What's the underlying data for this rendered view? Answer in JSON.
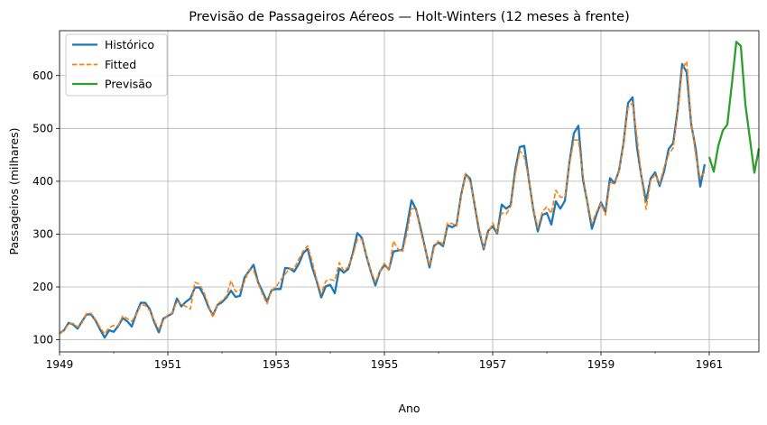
{
  "chart_data": {
    "type": "line",
    "title": "Previsão de Passageiros Aéreos — Holt-Winters (12 meses à frente)",
    "xlabel": "Ano",
    "ylabel": "Passageiros (milhares)",
    "x_start": "1949-01",
    "x_end": "1961-12",
    "xlim": [
      "1949-01",
      "1961-12"
    ],
    "ylim": [
      77,
      685
    ],
    "x_ticks": [
      "1949",
      "1951",
      "1953",
      "1955",
      "1957",
      "1959",
      "1961"
    ],
    "y_ticks": [
      100,
      200,
      300,
      400,
      500,
      600
    ],
    "grid": true,
    "legend_position": "top-left",
    "series": [
      {
        "name": "Histórico",
        "color": "#1f77b4",
        "style": "solid",
        "start": "1949-01",
        "values": [
          112,
          118,
          132,
          129,
          121,
          135,
          148,
          148,
          136,
          119,
          104,
          118,
          115,
          126,
          141,
          135,
          125,
          149,
          170,
          170,
          158,
          133,
          114,
          140,
          145,
          150,
          178,
          163,
          172,
          178,
          199,
          199,
          184,
          162,
          146,
          166,
          171,
          180,
          193,
          181,
          183,
          218,
          230,
          242,
          209,
          191,
          172,
          194,
          196,
          196,
          236,
          235,
          229,
          243,
          264,
          272,
          237,
          211,
          180,
          201,
          204,
          188,
          235,
          227,
          234,
          264,
          302,
          293,
          259,
          229,
          203,
          229,
          242,
          233,
          267,
          269,
          270,
          315,
          364,
          347,
          312,
          274,
          237,
          278,
          284,
          277,
          317,
          313,
          318,
          374,
          413,
          405,
          355,
          306,
          271,
          306,
          315,
          301,
          356,
          348,
          355,
          422,
          465,
          467,
          404,
          347,
          305,
          336,
          340,
          318,
          362,
          348,
          363,
          435,
          491,
          505,
          404,
          359,
          310,
          337,
          360,
          342,
          406,
          396,
          420,
          472,
          548,
          559,
          463,
          407,
          362,
          405,
          417,
          391,
          419,
          461,
          472,
          535,
          622,
          606,
          508,
          461,
          390,
          432
        ]
      },
      {
        "name": "Fitted",
        "color": "#ff7f0e",
        "style": "dashed",
        "start": "1949-01",
        "values": [
          112,
          117,
          130,
          131,
          124,
          132,
          150,
          150,
          138,
          123,
          111,
          123,
          127,
          127,
          145,
          140,
          135,
          147,
          166,
          165,
          155,
          136,
          120,
          136,
          147,
          151,
          172,
          168,
          163,
          158,
          209,
          205,
          190,
          166,
          142,
          168,
          174,
          183,
          212,
          191,
          193,
          210,
          233,
          232,
          207,
          186,
          168,
          194,
          200,
          213,
          224,
          235,
          234,
          252,
          268,
          278,
          248,
          214,
          187,
          211,
          214,
          212,
          246,
          230,
          238,
          260,
          290,
          290,
          261,
          230,
          209,
          229,
          245,
          231,
          287,
          272,
          266,
          302,
          348,
          348,
          306,
          272,
          241,
          274,
          288,
          280,
          321,
          320,
          315,
          370,
          415,
          400,
          358,
          312,
          274,
          301,
          321,
          303,
          340,
          338,
          352,
          413,
          458,
          446,
          405,
          348,
          312,
          342,
          352,
          339,
          383,
          370,
          370,
          431,
          478,
          478,
          412,
          358,
          321,
          342,
          358,
          336,
          398,
          395,
          418,
          470,
          539,
          549,
          482,
          406,
          347,
          401,
          413,
          395,
          426,
          451,
          463,
          527,
          611,
          627,
          514,
          449,
          406,
          418
        ]
      },
      {
        "name": "Previsão",
        "color": "#2ca02c",
        "style": "solid",
        "start": "1961-01",
        "values": [
          446,
          418,
          467,
          496,
          507,
          583,
          664,
          656,
          546,
          481,
          416,
          462
        ]
      }
    ]
  }
}
